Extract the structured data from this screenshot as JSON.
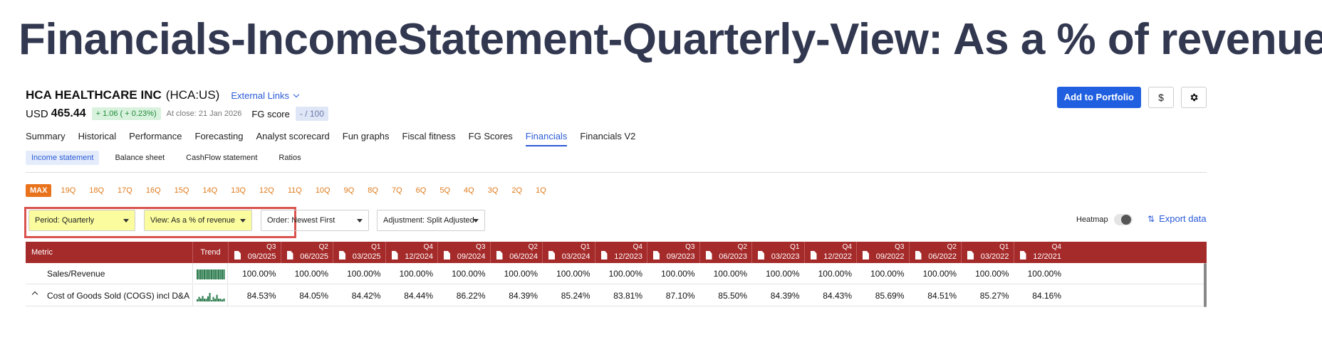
{
  "page_heading": "Financials-IncomeStatement-Quarterly-View: As a % of revenue",
  "company": {
    "name": "HCA HEALTHCARE INC",
    "ticker": "(HCA:US)",
    "external_links": "External Links"
  },
  "price": {
    "currency": "USD",
    "value": "465.44",
    "change": "+ 1.06 ( + 0.23%)",
    "close_date": "At close: 21 Jan 2026",
    "fg_label": "FG score",
    "fg_value": "- / 100"
  },
  "actions": {
    "add_portfolio": "Add to Portfolio",
    "currency_btn": "$",
    "settings_icon": "gear-icon"
  },
  "main_tabs": [
    {
      "label": "Summary"
    },
    {
      "label": "Historical"
    },
    {
      "label": "Performance"
    },
    {
      "label": "Forecasting"
    },
    {
      "label": "Analyst scorecard"
    },
    {
      "label": "Fun graphs"
    },
    {
      "label": "Fiscal fitness"
    },
    {
      "label": "FG Scores"
    },
    {
      "label": "Financials"
    },
    {
      "label": "Financials V2"
    }
  ],
  "active_main_tab": "Financials",
  "sub_tabs": [
    {
      "label": "Income statement"
    },
    {
      "label": "Balance sheet"
    },
    {
      "label": "CashFlow statement"
    },
    {
      "label": "Ratios"
    }
  ],
  "range_chips": [
    "MAX",
    "19Q",
    "18Q",
    "17Q",
    "16Q",
    "15Q",
    "14Q",
    "13Q",
    "12Q",
    "11Q",
    "10Q",
    "9Q",
    "8Q",
    "7Q",
    "6Q",
    "5Q",
    "4Q",
    "3Q",
    "2Q",
    "1Q"
  ],
  "filters": {
    "period": "Period: Quarterly",
    "view": "View: As a % of revenue",
    "order": "Order: Newest First",
    "adjustment": "Adjustment: Split Adjusted",
    "heatmap": "Heatmap",
    "export": "Export data"
  },
  "table": {
    "metric_header": "Metric",
    "trend_header": "Trend",
    "columns": [
      {
        "q": "Q3",
        "date": "09/2025"
      },
      {
        "q": "Q2",
        "date": "06/2025"
      },
      {
        "q": "Q1",
        "date": "03/2025"
      },
      {
        "q": "Q4",
        "date": "12/2024"
      },
      {
        "q": "Q3",
        "date": "09/2024"
      },
      {
        "q": "Q2",
        "date": "06/2024"
      },
      {
        "q": "Q1",
        "date": "03/2024"
      },
      {
        "q": "Q4",
        "date": "12/2023"
      },
      {
        "q": "Q3",
        "date": "09/2023"
      },
      {
        "q": "Q2",
        "date": "06/2023"
      },
      {
        "q": "Q1",
        "date": "03/2023"
      },
      {
        "q": "Q4",
        "date": "12/2022"
      },
      {
        "q": "Q3",
        "date": "09/2022"
      },
      {
        "q": "Q2",
        "date": "06/2022"
      },
      {
        "q": "Q1",
        "date": "03/2022"
      },
      {
        "q": "Q4",
        "date": "12/2021"
      }
    ],
    "rows": [
      {
        "metric": "Sales/Revenue",
        "values": [
          "100.00%",
          "100.00%",
          "100.00%",
          "100.00%",
          "100.00%",
          "100.00%",
          "100.00%",
          "100.00%",
          "100.00%",
          "100.00%",
          "100.00%",
          "100.00%",
          "100.00%",
          "100.00%",
          "100.00%",
          "100.00%"
        ],
        "trend_values": [
          100,
          100,
          100,
          100,
          100,
          100,
          100,
          100,
          100,
          100,
          100,
          100,
          100,
          100,
          100,
          100
        ]
      },
      {
        "metric": "Cost of Goods Sold (COGS) incl D&A",
        "values": [
          "84.53%",
          "84.05%",
          "84.42%",
          "84.44%",
          "86.22%",
          "84.39%",
          "85.24%",
          "83.81%",
          "87.10%",
          "85.50%",
          "84.39%",
          "84.43%",
          "85.69%",
          "84.51%",
          "85.27%",
          "84.16%"
        ],
        "trend_values": [
          84.53,
          84.05,
          84.42,
          84.44,
          86.22,
          84.39,
          85.24,
          83.81,
          87.1,
          85.5,
          84.39,
          84.43,
          85.69,
          84.51,
          85.27,
          84.16
        ]
      }
    ]
  },
  "colors": {
    "header_bg": "#a52a2a",
    "trend_green": "#2e7d4f",
    "accent_blue": "#2a5bd7",
    "chip_orange": "#e07b1c",
    "highlight_red": "#d9534f"
  }
}
